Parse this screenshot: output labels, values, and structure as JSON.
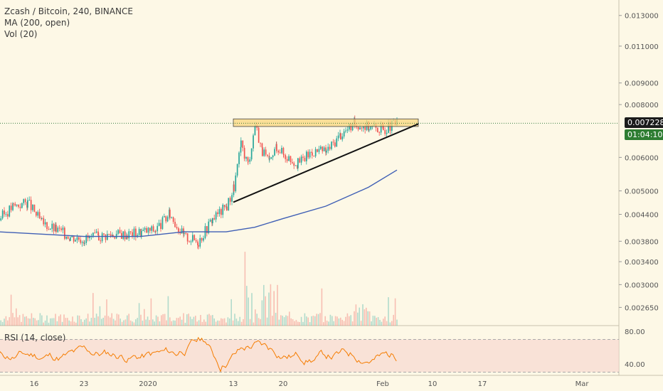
{
  "header": {
    "symbol": "Zcash / Bitcoin, 240, BINANCE",
    "ma_label": "MA (200, open)",
    "vol_label": "Vol (20)"
  },
  "rsi": {
    "label": "RSI (14, close)"
  },
  "price_tags": {
    "last_price": "0.007228",
    "countdown": "01:04:10"
  },
  "colors": {
    "background": "#fdf8e6",
    "up": "#26a69a",
    "down": "#ef5350",
    "ma": "#3f5fb5",
    "rsi_line": "#f57c00",
    "rsi_band": "#f7d9d0",
    "resistance_box": "#f9d77e",
    "last_price_tag": "#1b1b1b",
    "countdown_tag": "#2e7d32"
  },
  "chart_data": {
    "type": "line",
    "title": "Zcash / Bitcoin, 240, BINANCE",
    "xlabel": "",
    "ylabel": "",
    "ylim": [
      0.0024,
      0.0135
    ],
    "log_scale": true,
    "x_ticks": [
      "16",
      "23",
      "2020",
      "13",
      "20",
      "Feb",
      "10",
      "17",
      "Mar"
    ],
    "y_ticks": [
      "0.013000",
      "0.011000",
      "0.009000",
      "0.008000",
      "0.007228",
      "0.006000",
      "0.005000",
      "0.004400",
      "0.003800",
      "0.003400",
      "0.003000",
      "0.002650"
    ],
    "series": [
      {
        "name": "Close",
        "x": [
          "Dec 11",
          "Dec 13",
          "Dec 15",
          "Dec 17",
          "Dec 19",
          "Dec 21",
          "Dec 23",
          "Dec 25",
          "Dec 27",
          "Dec 29",
          "Dec 31",
          "Jan 2",
          "Jan 4",
          "Jan 6",
          "Jan 8",
          "Jan 10",
          "Jan 12",
          "Jan 13",
          "Jan 14",
          "Jan 15",
          "Jan 16",
          "Jan 17",
          "Jan 18",
          "Jan 19",
          "Jan 20",
          "Jan 22",
          "Jan 24",
          "Jan 26",
          "Jan 28",
          "Jan 30",
          "Feb 1",
          "Feb 3",
          "Feb 5"
        ],
        "values": [
          0.0043,
          0.0046,
          0.0047,
          0.0042,
          0.00405,
          0.0039,
          0.00385,
          0.0039,
          0.00395,
          0.00395,
          0.004,
          0.00405,
          0.0044,
          0.0039,
          0.0038,
          0.0043,
          0.0046,
          0.0051,
          0.0064,
          0.0058,
          0.0072,
          0.0062,
          0.0058,
          0.0064,
          0.0061,
          0.0058,
          0.0062,
          0.0062,
          0.0068,
          0.0072,
          0.0071,
          0.007,
          0.00722
        ]
      },
      {
        "name": "MA (200, open)",
        "x": [
          "Dec 11",
          "Dec 17",
          "Dec 23",
          "Dec 31",
          "Jan 6",
          "Jan 12",
          "Jan 16",
          "Jan 20",
          "Jan 26",
          "Feb 1",
          "Feb 5"
        ],
        "values": [
          0.004,
          0.00395,
          0.0039,
          0.0039,
          0.004,
          0.004,
          0.0041,
          0.0043,
          0.0046,
          0.0051,
          0.0056
        ]
      }
    ],
    "annotations": [
      {
        "type": "resistance_zone",
        "from": "Jan 13",
        "to": "Feb 8",
        "low": 0.0071,
        "high": 0.0074
      },
      {
        "type": "trendline",
        "from": [
          "Jan 13",
          0.0047
        ],
        "to": [
          "Feb 8",
          0.0072
        ]
      }
    ],
    "rsi": {
      "name": "RSI (14, close)",
      "y_ticks": [
        "80.00",
        "40.00"
      ],
      "upper": 70,
      "lower": 30
    }
  }
}
